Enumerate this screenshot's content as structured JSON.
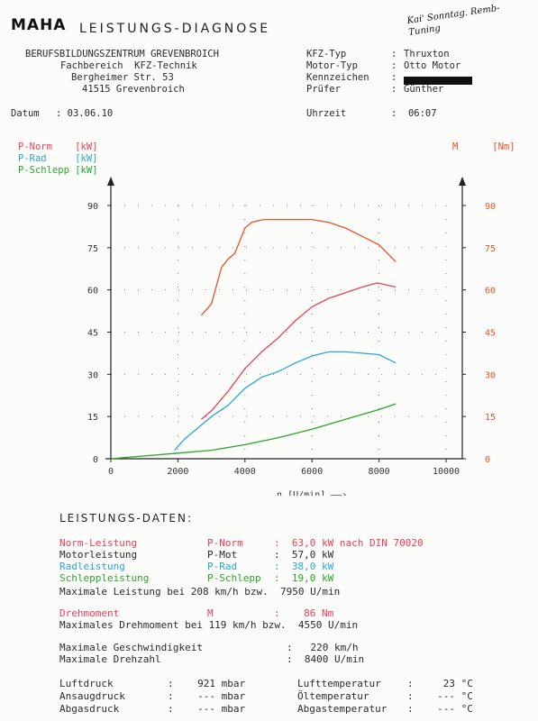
{
  "header": {
    "logo": "MAHA",
    "title": "LEISTUNGS-DIAGNOSE",
    "handwritten_note": "Kai' Sonntag. Remb-Tuning",
    "institution": [
      "BERUFSBILDUNGSZENTRUM GREVENBROICH",
      "Fachbereich  KFZ-Technik",
      "Bergheimer Str. 53",
      "41515 Grevenbroich"
    ],
    "fields": [
      {
        "label": "KFZ-Typ",
        "value": "Thruxton"
      },
      {
        "label": "Motor-Typ",
        "value": "Otto Motor"
      },
      {
        "label": "Kennzeichen",
        "value": ""
      },
      {
        "label": "Prüfer",
        "value": "Günther"
      }
    ],
    "datum_label": "Datum",
    "datum": "03.06.10",
    "uhrzeit_label": "Uhrzeit",
    "uhrzeit": "06:07"
  },
  "legend": [
    {
      "name": "P-Norm",
      "unit": "[kW]",
      "color": "#e8405a"
    },
    {
      "name": "P-Rad",
      "unit": "[kW]",
      "color": "#2aa6d8"
    },
    {
      "name": "P-Schlepp",
      "unit": "[kW]",
      "color": "#2aa52a"
    }
  ],
  "right_axis_label": {
    "name": "M",
    "unit": "[Nm]",
    "color": "#e8502a"
  },
  "chart_data": {
    "type": "line",
    "xlabel": "n [U/min]",
    "xlim": [
      0,
      10000
    ],
    "xticks": [
      0,
      2000,
      4000,
      6000,
      8000,
      10000
    ],
    "ylim": [
      0,
      90
    ],
    "yticks": [
      0,
      15,
      30,
      45,
      60,
      75,
      90
    ],
    "y2lim": [
      0,
      90
    ],
    "y2ticks": [
      0,
      15,
      30,
      45,
      60,
      75,
      90
    ],
    "grid": true,
    "legend_position": "top-left",
    "series": [
      {
        "name": "P-Norm",
        "unit": "kW",
        "axis": "left",
        "color": "#e8405a",
        "x": [
          2700,
          3000,
          3500,
          4000,
          4500,
          5000,
          5500,
          6000,
          6500,
          7000,
          7500,
          7950,
          8500
        ],
        "y": [
          14,
          17,
          24,
          32,
          38,
          43,
          49,
          54,
          57,
          59,
          61,
          62.5,
          61
        ]
      },
      {
        "name": "P-Rad",
        "unit": "kW",
        "axis": "left",
        "color": "#2aa6d8",
        "x": [
          1900,
          2200,
          2600,
          3000,
          3500,
          4000,
          4500,
          5000,
          5500,
          6000,
          6500,
          7000,
          7500,
          8000,
          8500
        ],
        "y": [
          3,
          7,
          11,
          15,
          19,
          25,
          29,
          31,
          34,
          36.5,
          38,
          38,
          37.5,
          37,
          34
        ]
      },
      {
        "name": "P-Schlepp",
        "unit": "kW",
        "axis": "left",
        "color": "#2aa52a",
        "x": [
          0,
          1000,
          2000,
          3000,
          4000,
          5000,
          6000,
          7000,
          8000,
          8500
        ],
        "y": [
          0,
          1,
          2,
          3,
          5,
          7.5,
          10.5,
          14,
          17.5,
          19.5
        ]
      },
      {
        "name": "M",
        "unit": "Nm",
        "axis": "right",
        "color": "#e8502a",
        "x": [
          2700,
          3000,
          3300,
          3500,
          3700,
          4000,
          4200,
          4550,
          5000,
          5500,
          6000,
          6500,
          7000,
          7500,
          8000,
          8500
        ],
        "y": [
          51,
          55,
          68,
          71,
          73,
          82,
          84,
          85,
          85,
          85,
          85,
          84,
          82,
          79,
          76,
          70
        ]
      }
    ]
  },
  "results_title": "LEISTUNGS-DATEN:",
  "results": [
    {
      "label": "Norm-Leistung",
      "symbol": "P-Norm",
      "value": ":  63,0 kW nach DIN 70020",
      "color": "#e8405a"
    },
    {
      "label": "Motorleistung",
      "symbol": "P-Mot",
      "value": ":  57,0 kW",
      "color": "#2a2a2a"
    },
    {
      "label": "Radleistung",
      "symbol": "P-Rad",
      "value": ":  38,0 kW",
      "color": "#2aa6d8"
    },
    {
      "label": "Schleppleistung",
      "symbol": "P-Schlepp",
      "value": ":  19,0 kW",
      "color": "#2aa52a"
    }
  ],
  "max_power_line": "Maximale Leistung bei 208 km/h bzw.  7950 U/min",
  "torque": {
    "label": "Drehmoment",
    "symbol": "M",
    "value": ":    86 Nm",
    "color": "#e8405a"
  },
  "max_torque_line": "Maximales Drehmoment bei 119 km/h bzw.  4550 U/min",
  "max_speed": {
    "label": "Maximale Geschwindigkeit",
    "value": ":   220 km/h"
  },
  "max_rpm": {
    "label": "Maximale Drehzahl",
    "value": ":  8400 U/min"
  },
  "ambient_left": [
    {
      "label": "Luftdruck",
      "value": ":    921 mbar"
    },
    {
      "label": "Ansaugdruck",
      "value": ":    --- mbar"
    },
    {
      "label": "Abgasdruck",
      "value": ":    --- mbar"
    }
  ],
  "ambient_right": [
    {
      "label": "Lufttemperatur",
      "value": ":     23 °C"
    },
    {
      "label": "Öltemperatur",
      "value": ":    --- °C"
    },
    {
      "label": "Abgastemperatur",
      "value": ":    --- °C"
    }
  ]
}
